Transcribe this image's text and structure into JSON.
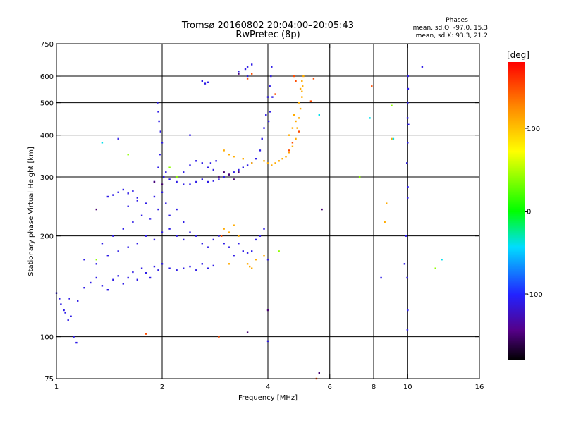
{
  "chart_data": {
    "type": "scatter",
    "title": "Tromsø 20160802 20:04:00–20:05:43",
    "subtitle": "RwPretec (8p)",
    "stats": {
      "heading": "Phases",
      "line_o": "mean, sd,O: -97.0, 15.3",
      "line_x": "mean, sd,X:  93.3, 21.2"
    },
    "xlabel": "Frequency [MHz]",
    "ylabel": "Stationary phase Virtual Height [km]",
    "xscale": "log",
    "yscale": "log",
    "xlim": [
      1,
      16
    ],
    "ylim": [
      75,
      750
    ],
    "xticks": [
      1,
      2,
      4,
      6,
      8,
      10,
      16
    ],
    "yticks": [
      75,
      100,
      200,
      300,
      400,
      500,
      600,
      750
    ],
    "xgrid": [
      2,
      4,
      6,
      8,
      10
    ],
    "ygrid": [
      100,
      200,
      300,
      400,
      500,
      600
    ],
    "grid": true,
    "colorbar": {
      "label": "[deg]",
      "ticks": [
        100,
        0,
        -100
      ],
      "range": [
        -180,
        180
      ],
      "colormap": "rainbow"
    },
    "series": [
      {
        "color_value": -110,
        "points": [
          [
            1.0,
            135
          ],
          [
            1.03,
            125
          ],
          [
            1.06,
            118
          ],
          [
            1.08,
            112
          ],
          [
            1.05,
            120
          ],
          [
            1.1,
            115
          ],
          [
            1.12,
            100
          ],
          [
            1.14,
            96
          ],
          [
            1.02,
            130
          ],
          [
            1.09,
            130
          ],
          [
            1.15,
            128
          ],
          [
            1.2,
            140
          ],
          [
            1.25,
            145
          ],
          [
            1.3,
            150
          ],
          [
            1.35,
            142
          ],
          [
            1.4,
            138
          ],
          [
            1.45,
            148
          ],
          [
            1.5,
            152
          ],
          [
            1.55,
            144
          ],
          [
            1.6,
            150
          ],
          [
            1.65,
            156
          ],
          [
            1.7,
            148
          ],
          [
            1.75,
            160
          ],
          [
            1.8,
            155
          ],
          [
            1.85,
            150
          ],
          [
            1.9,
            162
          ],
          [
            1.95,
            158
          ],
          [
            2.0,
            165
          ],
          [
            2.1,
            160
          ],
          [
            2.2,
            158
          ],
          [
            2.3,
            160
          ],
          [
            2.4,
            162
          ],
          [
            2.5,
            158
          ],
          [
            2.6,
            165
          ],
          [
            2.7,
            160
          ],
          [
            2.8,
            163
          ],
          [
            1.2,
            170
          ],
          [
            1.3,
            165
          ],
          [
            1.4,
            175
          ],
          [
            1.5,
            180
          ],
          [
            1.6,
            185
          ],
          [
            1.7,
            190
          ],
          [
            1.8,
            200
          ],
          [
            1.9,
            195
          ],
          [
            2.0,
            205
          ],
          [
            2.1,
            210
          ],
          [
            2.2,
            200
          ],
          [
            2.3,
            195
          ],
          [
            2.4,
            205
          ],
          [
            2.5,
            200
          ],
          [
            2.6,
            190
          ],
          [
            2.7,
            185
          ],
          [
            2.8,
            195
          ],
          [
            2.9,
            200
          ],
          [
            3.0,
            190
          ],
          [
            3.1,
            185
          ],
          [
            3.2,
            175
          ],
          [
            3.3,
            190
          ],
          [
            3.4,
            180
          ],
          [
            3.5,
            178
          ],
          [
            1.35,
            190
          ],
          [
            1.45,
            200
          ],
          [
            1.55,
            210
          ],
          [
            1.65,
            220
          ],
          [
            1.75,
            230
          ],
          [
            1.85,
            225
          ],
          [
            1.95,
            240
          ],
          [
            2.05,
            250
          ],
          [
            1.6,
            245
          ],
          [
            1.7,
            255
          ],
          [
            1.8,
            250
          ],
          [
            1.9,
            262
          ],
          [
            2.0,
            270
          ],
          [
            2.1,
            230
          ],
          [
            2.2,
            240
          ],
          [
            2.3,
            220
          ],
          [
            1.5,
            270
          ],
          [
            1.55,
            275
          ],
          [
            1.6,
            268
          ],
          [
            1.65,
            272
          ],
          [
            1.7,
            260
          ],
          [
            1.45,
            265
          ],
          [
            1.4,
            262
          ],
          [
            1.9,
            290
          ],
          [
            1.95,
            320
          ],
          [
            1.97,
            350
          ],
          [
            2.0,
            380
          ],
          [
            1.98,
            410
          ],
          [
            1.96,
            440
          ],
          [
            1.95,
            470
          ],
          [
            1.94,
            500
          ],
          [
            2.02,
            300
          ],
          [
            2.05,
            310
          ],
          [
            2.1,
            295
          ],
          [
            2.2,
            290
          ],
          [
            2.3,
            285
          ],
          [
            2.4,
            285
          ],
          [
            2.5,
            290
          ],
          [
            2.6,
            295
          ],
          [
            2.7,
            290
          ],
          [
            2.8,
            292
          ],
          [
            2.9,
            295
          ],
          [
            3.0,
            300
          ],
          [
            3.1,
            305
          ],
          [
            3.2,
            310
          ],
          [
            3.3,
            315
          ],
          [
            3.4,
            320
          ],
          [
            3.5,
            325
          ],
          [
            3.6,
            330
          ],
          [
            3.7,
            340
          ],
          [
            3.8,
            360
          ],
          [
            3.85,
            390
          ],
          [
            3.9,
            420
          ],
          [
            3.95,
            460
          ],
          [
            4.0,
            520
          ],
          [
            4.05,
            560
          ],
          [
            4.08,
            600
          ],
          [
            4.1,
            640
          ],
          [
            4.12,
            520
          ],
          [
            4.06,
            470
          ],
          [
            4.02,
            440
          ],
          [
            2.3,
            310
          ],
          [
            2.4,
            325
          ],
          [
            2.5,
            335
          ],
          [
            2.6,
            330
          ],
          [
            2.7,
            320
          ],
          [
            2.8,
            315
          ],
          [
            2.75,
            330
          ],
          [
            2.85,
            335
          ],
          [
            2.6,
            580
          ],
          [
            2.7,
            575
          ],
          [
            2.65,
            570
          ],
          [
            3.5,
            640
          ],
          [
            3.6,
            650
          ],
          [
            3.45,
            630
          ],
          [
            3.3,
            620
          ],
          [
            3.8,
            200
          ],
          [
            3.9,
            210
          ],
          [
            4.0,
            170
          ],
          [
            3.6,
            180
          ],
          [
            3.7,
            195
          ],
          [
            9.8,
            165
          ],
          [
            9.9,
            200
          ],
          [
            10.0,
            260
          ],
          [
            9.95,
            330
          ],
          [
            10.0,
            380
          ],
          [
            10.05,
            430
          ],
          [
            10.0,
            500
          ],
          [
            10.02,
            600
          ],
          [
            9.97,
            150
          ],
          [
            10.0,
            120
          ],
          [
            9.98,
            105
          ],
          [
            10.01,
            280
          ],
          [
            9.99,
            450
          ],
          [
            10.03,
            550
          ],
          [
            1.5,
            390
          ],
          [
            4.0,
            97
          ],
          [
            2.4,
            400
          ],
          [
            3.5,
            600
          ],
          [
            11.0,
            640
          ],
          [
            8.4,
            150
          ]
        ]
      },
      {
        "color_value": 110,
        "points": [
          [
            4.2,
            330
          ],
          [
            4.3,
            335
          ],
          [
            4.4,
            340
          ],
          [
            4.5,
            345
          ],
          [
            4.6,
            355
          ],
          [
            4.7,
            370
          ],
          [
            4.8,
            390
          ],
          [
            4.85,
            420
          ],
          [
            4.9,
            450
          ],
          [
            4.95,
            480
          ],
          [
            5.0,
            520
          ],
          [
            5.02,
            560
          ],
          [
            5.05,
            600
          ],
          [
            5.0,
            580
          ],
          [
            4.95,
            550
          ],
          [
            4.0,
            330
          ],
          [
            4.1,
            325
          ],
          [
            3.9,
            335
          ],
          [
            3.6,
            330
          ],
          [
            3.4,
            340
          ],
          [
            3.2,
            345
          ],
          [
            3.0,
            360
          ],
          [
            3.1,
            350
          ],
          [
            4.6,
            400
          ],
          [
            4.7,
            420
          ],
          [
            4.8,
            440
          ],
          [
            4.9,
            500
          ],
          [
            5.0,
            540
          ],
          [
            4.75,
            460
          ],
          [
            3.0,
            210
          ],
          [
            3.1,
            205
          ],
          [
            3.2,
            215
          ],
          [
            3.3,
            200
          ],
          [
            3.5,
            165
          ],
          [
            3.6,
            160
          ],
          [
            3.55,
            162
          ],
          [
            3.7,
            170
          ],
          [
            3.1,
            165
          ],
          [
            3.9,
            175
          ],
          [
            8.7,
            250
          ],
          [
            8.6,
            220
          ],
          [
            9.0,
            390
          ]
        ]
      },
      {
        "color_value": 150,
        "points": [
          [
            4.8,
            580
          ],
          [
            4.75,
            600
          ],
          [
            4.9,
            410
          ],
          [
            4.7,
            380
          ],
          [
            4.6,
            360
          ],
          [
            3.6,
            610
          ],
          [
            3.5,
            590
          ],
          [
            7.9,
            560
          ],
          [
            5.4,
            590
          ],
          [
            5.3,
            505
          ],
          [
            4.2,
            530
          ],
          [
            1.8,
            102
          ],
          [
            2.9,
            100
          ],
          [
            5.5,
            75
          ],
          [
            2.95,
            200
          ]
        ]
      },
      {
        "color_value": -150,
        "points": [
          [
            2.9,
            300
          ],
          [
            3.0,
            310
          ],
          [
            3.1,
            305
          ],
          [
            3.2,
            295
          ],
          [
            3.3,
            310
          ],
          [
            1.3,
            240
          ],
          [
            1.9,
            290
          ],
          [
            2.0,
            285
          ],
          [
            3.3,
            610
          ],
          [
            5.6,
            78
          ],
          [
            5.7,
            240
          ],
          [
            4.0,
            120
          ],
          [
            3.5,
            103
          ]
        ]
      },
      {
        "color_value": 40,
        "points": [
          [
            2.2,
            300
          ],
          [
            2.1,
            320
          ],
          [
            1.6,
            350
          ],
          [
            1.3,
            170
          ],
          [
            4.3,
            180
          ],
          [
            7.3,
            300
          ],
          [
            9.0,
            490
          ],
          [
            12.0,
            160
          ]
        ]
      },
      {
        "color_value": -40,
        "points": [
          [
            1.35,
            380
          ],
          [
            5.6,
            460
          ],
          [
            7.8,
            450
          ],
          [
            12.5,
            170
          ],
          [
            9.1,
            390
          ]
        ]
      }
    ]
  }
}
